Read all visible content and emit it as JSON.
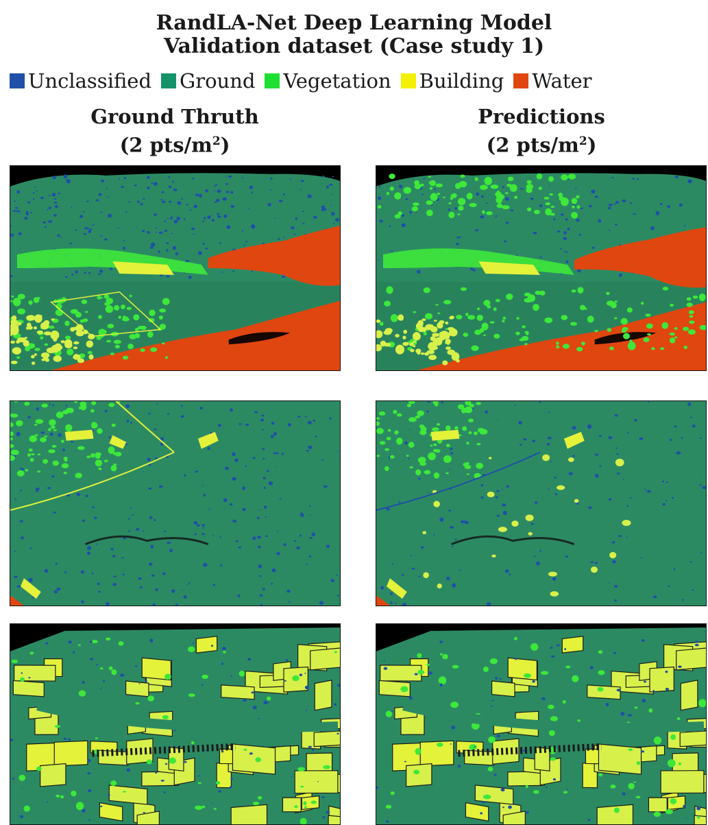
{
  "title": {
    "line1": "RandLA-Net Deep Learning Model",
    "line2": "Validation dataset (Case study 1)"
  },
  "legend": [
    {
      "label": "Unclassified",
      "color": "#1f4fa8"
    },
    {
      "label": "Ground",
      "color": "#14926a"
    },
    {
      "label": "Vegetation",
      "color": "#1ee033"
    },
    {
      "label": "Building",
      "color": "#f3f000"
    },
    {
      "label": "Water",
      "color": "#e0460f"
    }
  ],
  "columns": {
    "left": {
      "line1": "Ground Thruth",
      "line2_prefix": "(2 pts/m",
      "line2_sup": "2",
      "line2_suffix": ")"
    },
    "right": {
      "line1": "Predictions",
      "line2_prefix": "(2 pts/m",
      "line2_sup": "2",
      "line2_suffix": ")"
    }
  },
  "colors": {
    "ground": "#2c8a63",
    "ground_dark": "#237553",
    "unclassified": "#1f4fa8",
    "vegetation": "#3ee83a",
    "building": "#e4f23a",
    "building_light": "#d8f04a",
    "water": "#e0460f",
    "background": "#000000"
  }
}
